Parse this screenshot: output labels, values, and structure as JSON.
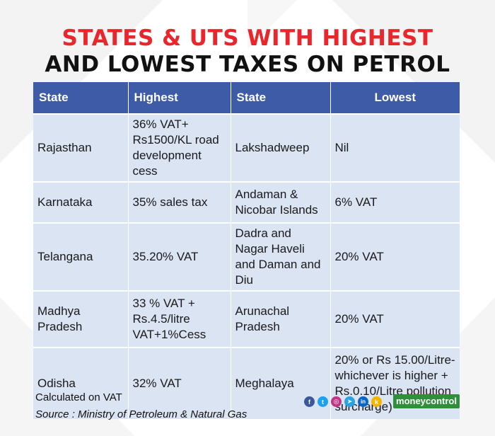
{
  "title": {
    "line1": "STATES & UTS WITH HIGHEST",
    "line2": "AND LOWEST TAXES ON PETROL"
  },
  "table": {
    "headers": [
      "State",
      "Highest",
      "State",
      "Lowest"
    ],
    "rows": [
      [
        "Rajasthan",
        "36% VAT+ Rs1500/KL road development cess",
        "Lakshadweep",
        "Nil"
      ],
      [
        "Karnataka",
        "35% sales tax",
        "Andaman & Nicobar Islands",
        "6% VAT"
      ],
      [
        "Telangana",
        "35.20% VAT",
        "Dadra and Nagar Haveli and Daman and Diu",
        "20% VAT"
      ],
      [
        "Madhya Pradesh",
        "33 % VAT + Rs.4.5/litre VAT+1%Cess",
        "Arunachal Pradesh",
        "20% VAT"
      ],
      [
        "Odisha",
        "32% VAT",
        "Meghalaya",
        "20% or Rs 15.00/Litre- whichever is higher + Rs.0.10/Litre pollution surcharge)"
      ]
    ]
  },
  "footnotes": {
    "note": "Calculated on VAT",
    "source": "Source : Ministry of Petroleum & Natural Gas"
  },
  "social_icons": [
    {
      "icon": "facebook-icon",
      "glyph": "f",
      "color": "#3b5998"
    },
    {
      "icon": "twitter-icon",
      "glyph": "t",
      "color": "#1da1f2"
    },
    {
      "icon": "instagram-icon",
      "glyph": "◎",
      "color": "#c13584"
    },
    {
      "icon": "telegram-icon",
      "glyph": "➤",
      "color": "#2aa3de"
    },
    {
      "icon": "linkedin-icon",
      "glyph": "in",
      "color": "#0a66c2"
    },
    {
      "icon": "koo-icon",
      "glyph": "k",
      "color": "#f5b400"
    }
  ],
  "brand": "moneycontrol",
  "colors": {
    "title_accent": "#e8262b",
    "header_bg": "#3d5ba6",
    "cell_bg": "#dbe4f3",
    "brand_bg": "#2f8f3a"
  }
}
